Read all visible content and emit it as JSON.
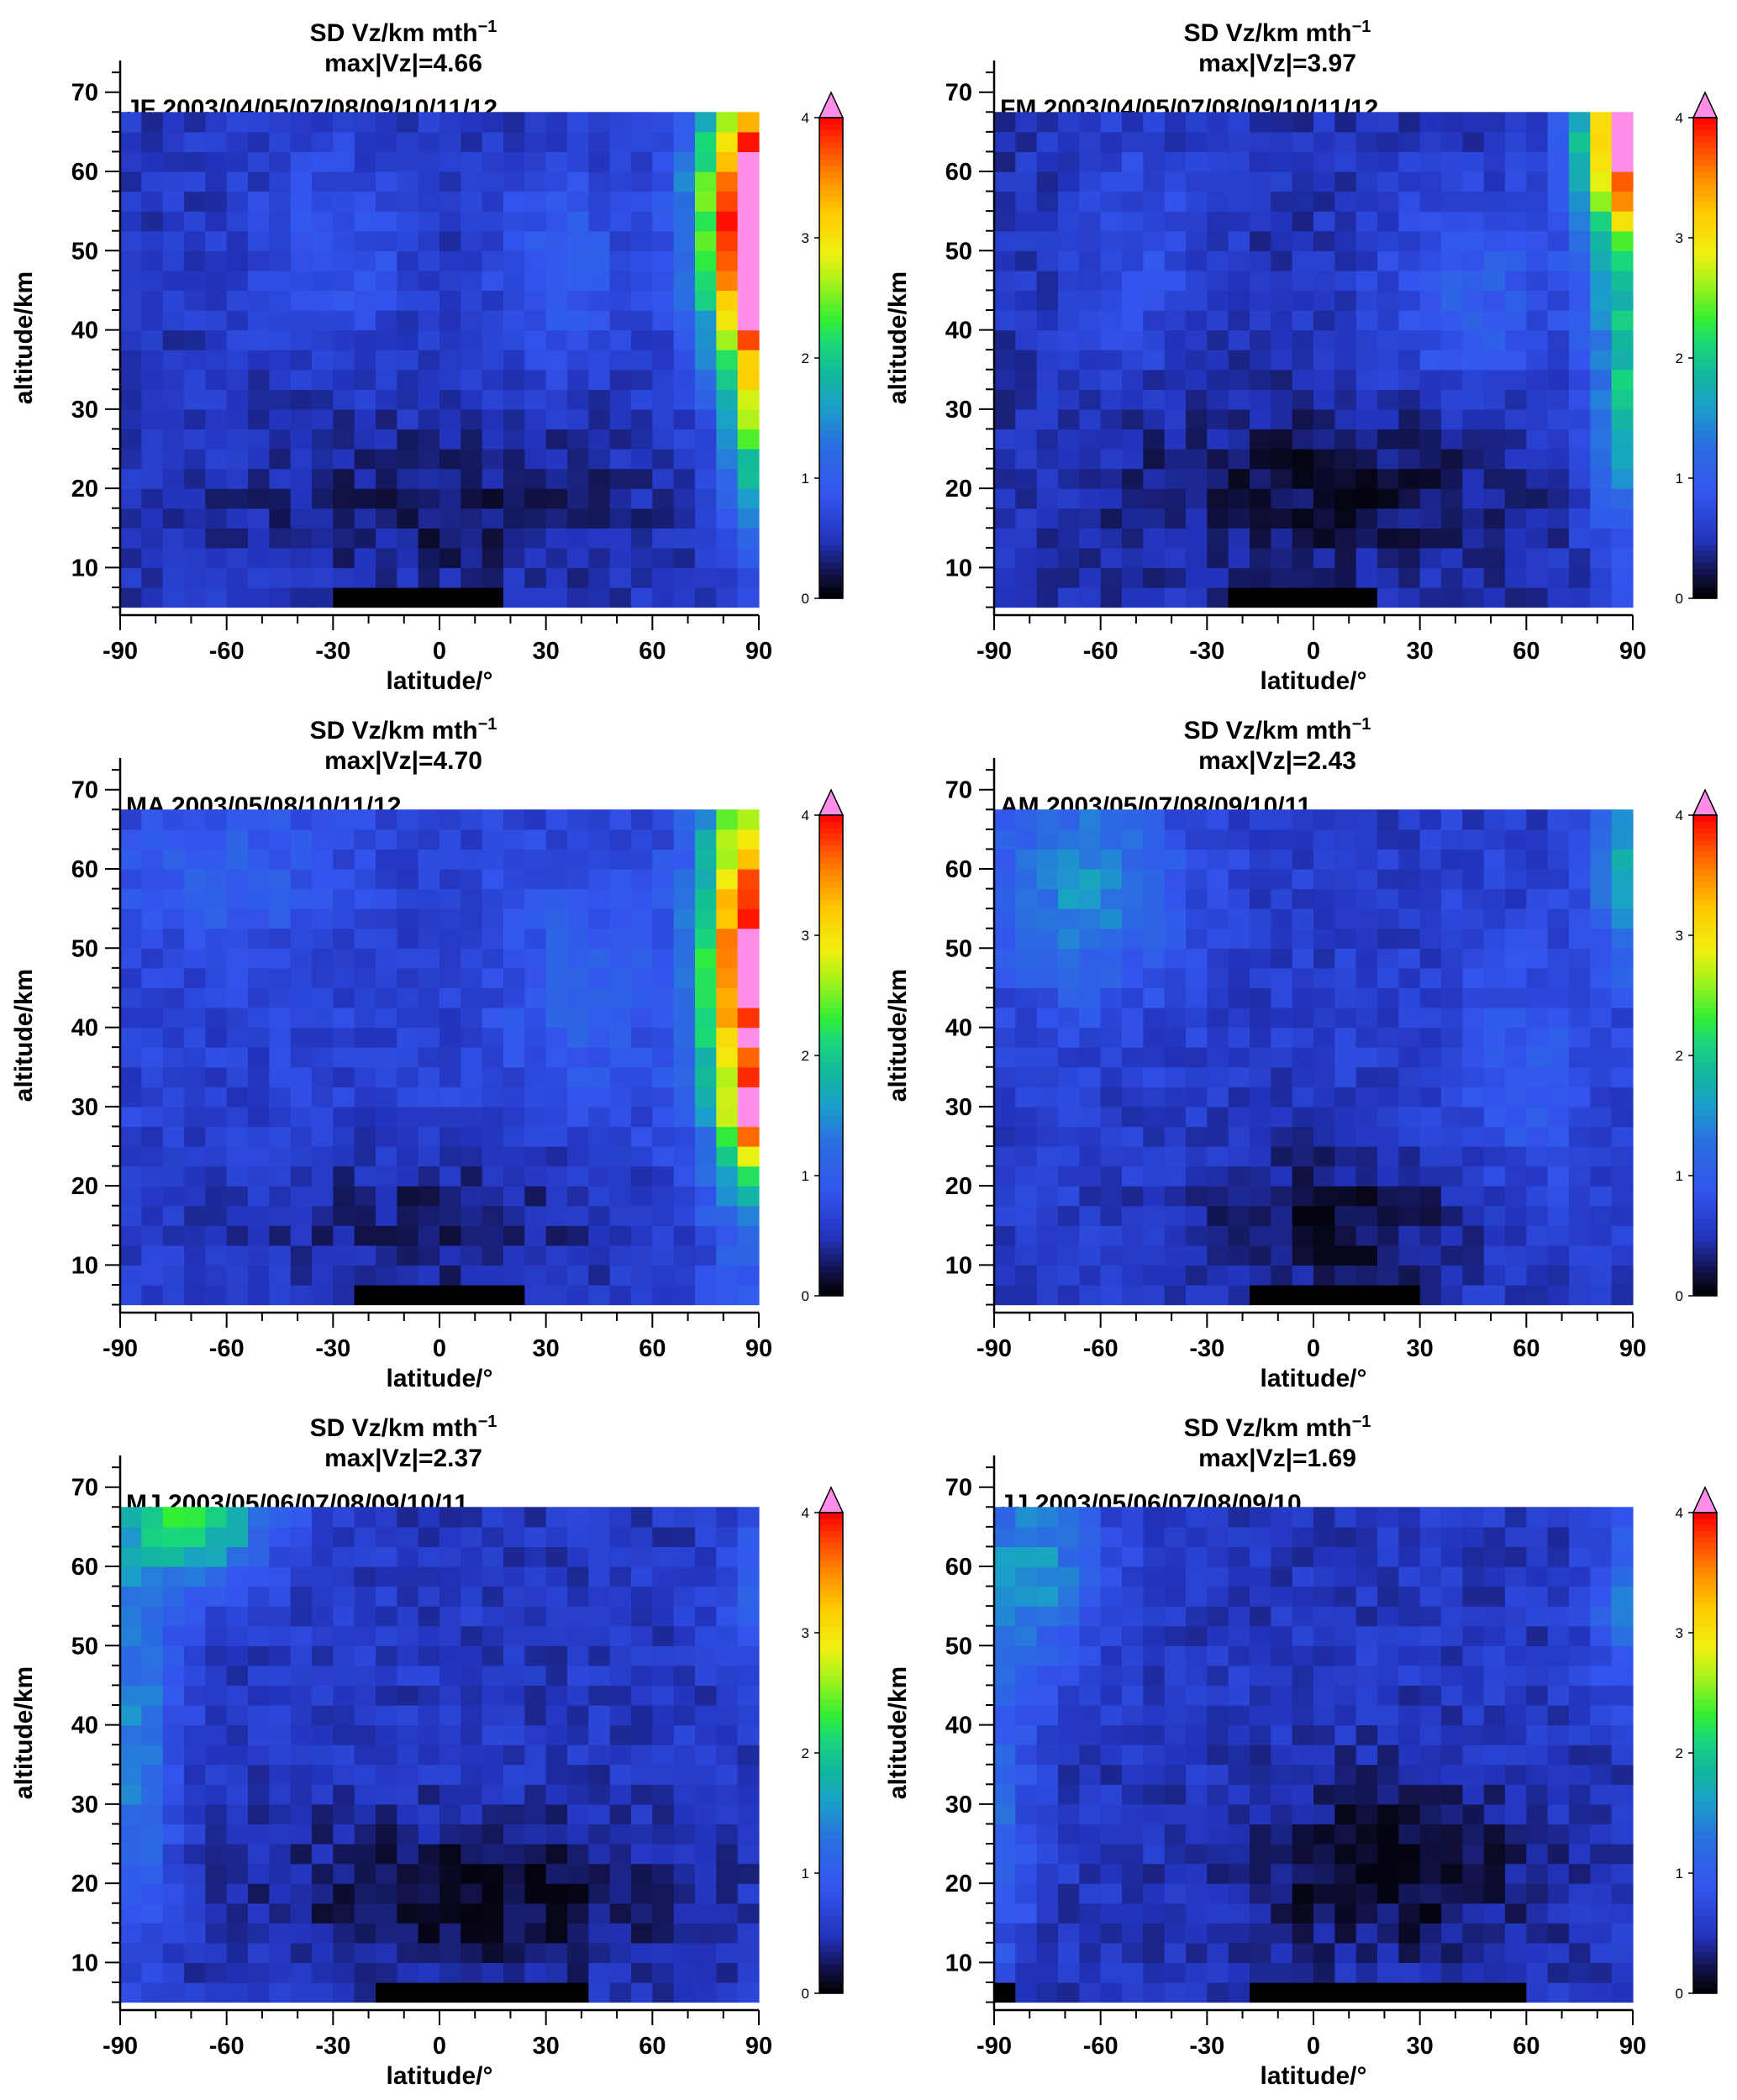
{
  "figure": {
    "colorbar": {
      "ticks": [
        0,
        1,
        2,
        3,
        4
      ],
      "range": [
        0,
        4
      ],
      "overflow_color": "#ff8ee8",
      "colormap_stops": [
        [
          0.0,
          "#000000"
        ],
        [
          0.05,
          "#111144"
        ],
        [
          0.12,
          "#2233bb"
        ],
        [
          0.22,
          "#3355ee"
        ],
        [
          0.32,
          "#2a6fe0"
        ],
        [
          0.4,
          "#1aa0c8"
        ],
        [
          0.47,
          "#13b99a"
        ],
        [
          0.53,
          "#1ad87a"
        ],
        [
          0.58,
          "#33ee33"
        ],
        [
          0.66,
          "#aaf21a"
        ],
        [
          0.72,
          "#f0f010"
        ],
        [
          0.8,
          "#ffcc00"
        ],
        [
          0.88,
          "#ff8800"
        ],
        [
          0.95,
          "#ff3a00"
        ],
        [
          1.0,
          "#ff0000"
        ]
      ]
    },
    "axes": {
      "xlabel": "latitude/°",
      "ylabel": "altitude/km",
      "x_ticks": [
        -90,
        -60,
        -30,
        0,
        30,
        60,
        90
      ],
      "y_ticks": [
        10,
        20,
        30,
        40,
        50,
        60,
        70
      ],
      "xlim": [
        -90,
        90
      ],
      "ylim": [
        4,
        74
      ]
    }
  },
  "chart_data": [
    {
      "type": "heatmap",
      "title_line1": "SD Vz/km mth",
      "title_sup": "−1",
      "title_line2": "max|Vz|=4.66",
      "annotation": "JF  2003/04/05/07/08/09/10/11/12",
      "xlabel": "latitude/°",
      "ylabel": "altitude/km",
      "x_range": [
        -90,
        90
      ],
      "y_range": [
        5,
        67.5
      ],
      "colorbar_range": [
        0,
        4
      ],
      "features": "north-polar upper stratosphere peak (values above 4 near 80–90°N, 50–60 km); minimum below 30 km in tropics",
      "missing": [
        {
          "lat_range": [
            -30,
            18
          ],
          "alt_range": [
            5,
            7.5
          ]
        }
      ]
    },
    {
      "type": "heatmap",
      "title_line1": "SD Vz/km mth",
      "title_sup": "−1",
      "title_line2": "max|Vz|=3.97",
      "annotation": "FM  2003/04/05/07/08/09/10/11/12",
      "xlabel": "latitude/°",
      "ylabel": "altitude/km",
      "x_range": [
        -90,
        90
      ],
      "y_range": [
        5,
        67.5
      ],
      "colorbar_range": [
        0,
        4
      ],
      "features": "north-polar peak near 80–90°N above 45 km; dark minimum 10–30 km in tropics",
      "missing": [
        {
          "lat_range": [
            -24,
            18
          ],
          "alt_range": [
            5,
            7.5
          ]
        }
      ]
    },
    {
      "type": "heatmap",
      "title_line1": "SD Vz/km mth",
      "title_sup": "−1",
      "title_line2": "max|Vz|=4.70",
      "annotation": "MA  2003/05/08/10/11/12",
      "xlabel": "latitude/°",
      "ylabel": "altitude/km",
      "x_range": [
        -90,
        90
      ],
      "y_range": [
        5,
        67.5
      ],
      "colorbar_range": [
        0,
        4
      ],
      "features": "north-polar column 70–90°N elevated at all heights above 20 km; values above 4 near 85°N, 20–30 km",
      "missing": [
        {
          "lat_range": [
            -24,
            24
          ],
          "alt_range": [
            5,
            7.5
          ]
        }
      ]
    },
    {
      "type": "heatmap",
      "title_line1": "SD Vz/km mth",
      "title_sup": "−1",
      "title_line2": "max|Vz|=2.43",
      "annotation": "AM  2003/05/07/08/09/10/11",
      "xlabel": "latitude/°",
      "ylabel": "altitude/km",
      "x_range": [
        -90,
        90
      ],
      "y_range": [
        5,
        67.5
      ],
      "colorbar_range": [
        0,
        4
      ],
      "features": "moderate values at both poles above 45 km; tropical minimum below 30 km",
      "missing": [
        {
          "lat_range": [
            -18,
            30
          ],
          "alt_range": [
            5,
            7.5
          ]
        }
      ]
    },
    {
      "type": "heatmap",
      "title_line1": "SD Vz/km mth",
      "title_sup": "−1",
      "title_line2": "max|Vz|=2.37",
      "annotation": "MJ  2003/05/06/07/08/09/10/11",
      "xlabel": "latitude/°",
      "ylabel": "altitude/km",
      "x_range": [
        -90,
        90
      ],
      "y_range": [
        5,
        67.5
      ],
      "colorbar_range": [
        0,
        4
      ],
      "features": "south-polar upper-level maximum near 60–80°S above 60 km; low values elsewhere",
      "missing": [
        {
          "lat_range": [
            -18,
            42
          ],
          "alt_range": [
            5,
            7.5
          ]
        }
      ]
    },
    {
      "type": "heatmap",
      "title_line1": "SD Vz/km mth",
      "title_sup": "−1",
      "title_line2": "max|Vz|=1.69",
      "annotation": "JJ  2003/05/06/07/08/09/10",
      "xlabel": "latitude/°",
      "ylabel": "altitude/km",
      "x_range": [
        -90,
        90
      ],
      "y_range": [
        5,
        67.5
      ],
      "colorbar_range": [
        0,
        4
      ],
      "features": "weak south-polar maximum above 55 km; dark minimum 10–30 km",
      "missing": [
        {
          "lat_range": [
            -90,
            -84
          ],
          "alt_range": [
            5,
            7.5
          ]
        },
        {
          "lat_range": [
            -18,
            60
          ],
          "alt_range": [
            5,
            7.5
          ]
        }
      ]
    }
  ]
}
